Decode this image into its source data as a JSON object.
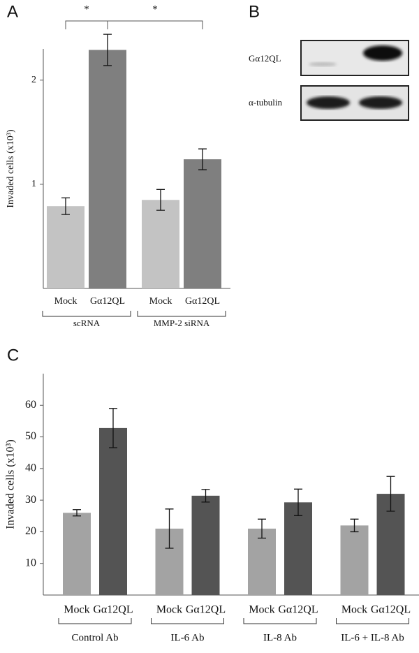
{
  "chart_data": [
    {
      "type": "bar",
      "panel_label": "A",
      "y_label": "Invaded cells (x10³)",
      "categories": [
        "scRNA",
        "MMP-2 siRNA"
      ],
      "series": [
        {
          "name": "Mock",
          "color": "#c3c3c3",
          "values": [
            0.79,
            0.85
          ],
          "errors": [
            0.08,
            0.1
          ]
        },
        {
          "name": "Gα12QL",
          "color": "#7f7f7f",
          "values": [
            2.29,
            1.24
          ],
          "errors": [
            0.15,
            0.1
          ]
        }
      ],
      "ylim": [
        0,
        2.3
      ],
      "yticks": [
        1,
        2
      ],
      "significance": [
        "*",
        "*"
      ]
    },
    {
      "type": "bar",
      "panel_label": "C",
      "y_label": "Invaded cells (x10³)",
      "categories": [
        "Control Ab",
        "IL-6 Ab",
        "IL-8 Ab",
        "IL-6 + IL-8 Ab"
      ],
      "series": [
        {
          "name": "Mock",
          "color": "#a3a3a3",
          "values": [
            26,
            21,
            21,
            22
          ],
          "errors": [
            1,
            6.2,
            3,
            2
          ]
        },
        {
          "name": "Gα12QL",
          "color": "#545454",
          "values": [
            52.8,
            31.4,
            29.3,
            32
          ],
          "errors": [
            6.2,
            2,
            4.2,
            5.5
          ]
        }
      ],
      "ylim": [
        0,
        70
      ],
      "yticks": [
        10,
        20,
        30,
        40,
        50,
        60
      ]
    }
  ],
  "blot": {
    "panel_label": "B",
    "rows": [
      "Gα12QL",
      "α-tubulin"
    ]
  }
}
